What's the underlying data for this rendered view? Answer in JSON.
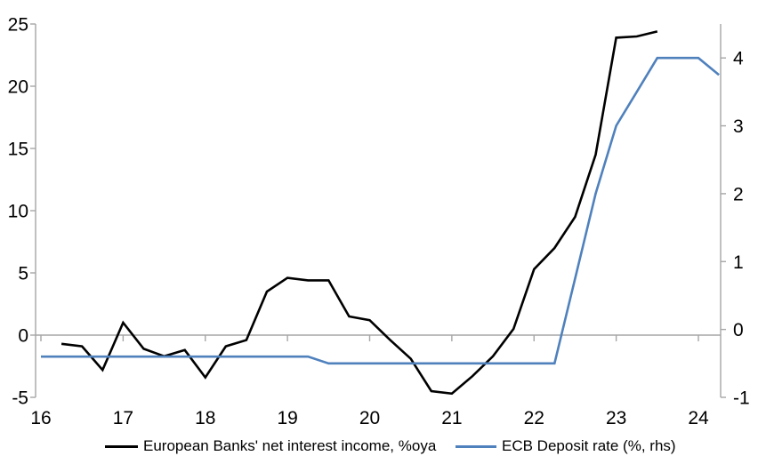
{
  "chart_data": {
    "type": "line",
    "title": "",
    "xlabel": "",
    "x_ticks": [
      16,
      17,
      18,
      19,
      20,
      21,
      22,
      23,
      24
    ],
    "left_axis": {
      "ticks": [
        -5,
        0,
        5,
        10,
        15,
        20,
        25
      ],
      "range": [
        -5,
        25
      ]
    },
    "right_axis": {
      "ticks": [
        -1,
        0,
        1,
        2,
        3,
        4
      ],
      "range": [
        -1,
        4.5
      ]
    },
    "grid": "off",
    "legend_position": "bottom",
    "series": [
      {
        "name": "European Banks' net interest income, %oya",
        "axis": "left",
        "color": "#000000",
        "x": [
          16.25,
          16.5,
          16.75,
          17.0,
          17.25,
          17.5,
          17.75,
          18.0,
          18.25,
          18.5,
          18.75,
          19.0,
          19.25,
          19.5,
          19.75,
          20.0,
          20.25,
          20.5,
          20.75,
          21.0,
          21.25,
          21.5,
          21.75,
          22.0,
          22.25,
          22.5,
          22.75,
          23.0,
          23.25,
          23.5
        ],
        "values": [
          -0.7,
          -0.9,
          -2.8,
          1.0,
          -1.1,
          -1.7,
          -1.2,
          -3.4,
          -0.9,
          -0.4,
          3.5,
          4.6,
          4.4,
          4.4,
          1.5,
          1.2,
          -0.4,
          -1.9,
          -4.5,
          -4.7,
          -3.3,
          -1.7,
          0.5,
          5.3,
          7.0,
          9.5,
          14.5,
          23.9,
          24.0,
          24.4
        ]
      },
      {
        "name": "ECB Deposit rate (%, rhs)",
        "axis": "right",
        "color": "#4F81BD",
        "x": [
          16.0,
          16.25,
          16.5,
          16.75,
          17.0,
          17.25,
          17.5,
          17.75,
          18.0,
          18.25,
          18.5,
          18.75,
          19.0,
          19.25,
          19.5,
          19.75,
          20.0,
          20.25,
          20.5,
          20.75,
          21.0,
          21.25,
          21.5,
          21.75,
          22.0,
          22.25,
          22.5,
          22.75,
          23.0,
          23.25,
          23.5,
          23.75,
          24.0,
          24.25
        ],
        "values": [
          -0.4,
          -0.4,
          -0.4,
          -0.4,
          -0.4,
          -0.4,
          -0.4,
          -0.4,
          -0.4,
          -0.4,
          -0.4,
          -0.4,
          -0.4,
          -0.4,
          -0.5,
          -0.5,
          -0.5,
          -0.5,
          -0.5,
          -0.5,
          -0.5,
          -0.5,
          -0.5,
          -0.5,
          -0.5,
          -0.5,
          0.75,
          2.0,
          3.0,
          3.5,
          4.0,
          4.0,
          4.0,
          3.75
        ]
      }
    ]
  },
  "legend": {
    "items": [
      {
        "label": "European Banks' net interest income, %oya",
        "color": "#000000"
      },
      {
        "label": "ECB Deposit rate (%, rhs)",
        "color": "#4F81BD"
      }
    ]
  },
  "colors": {
    "series1": "#000000",
    "series2": "#4F81BD",
    "axis": "#A6A6A6",
    "zero_line": "#A6A6A6",
    "text": "#000000",
    "background": "#ffffff"
  }
}
